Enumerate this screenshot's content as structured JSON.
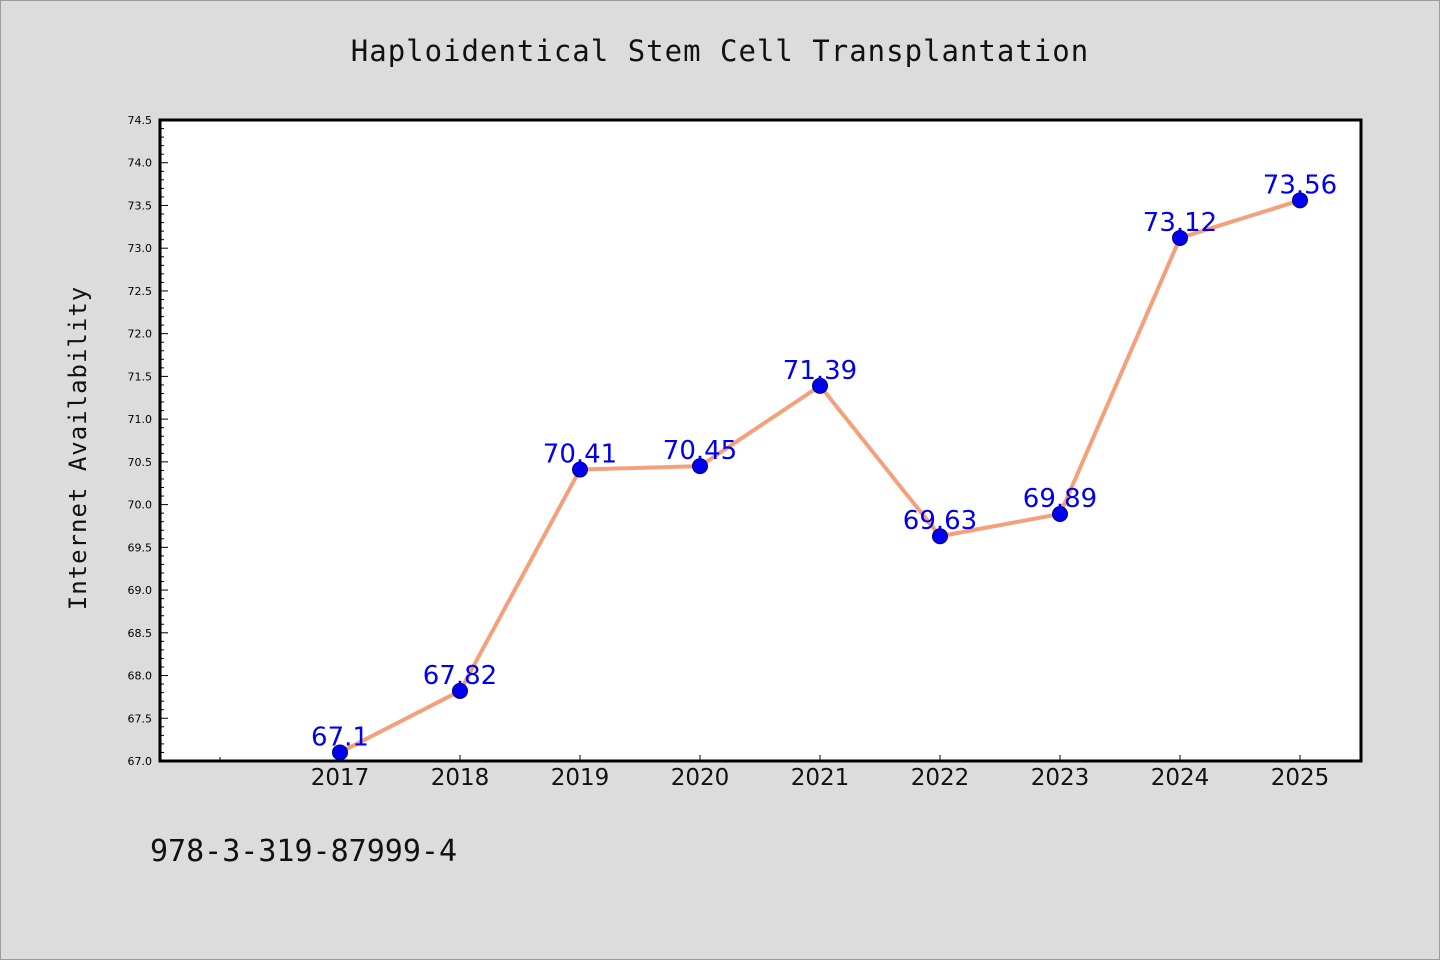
{
  "chart_data": {
    "type": "line",
    "title": "Haploidentical Stem Cell Transplantation",
    "xlabel": "",
    "ylabel": "Internet Availability",
    "categories": [
      "2017",
      "2018",
      "2019",
      "2020",
      "2021",
      "2022",
      "2023",
      "2024",
      "2025"
    ],
    "series": [
      {
        "values": [
          67.1,
          67.82,
          70.41,
          70.45,
          71.39,
          69.63,
          69.89,
          73.12,
          73.56
        ],
        "labels": [
          "67.1",
          "67.82",
          "70.41",
          "70.45",
          "71.39",
          "69.63",
          "69.89",
          "73.12",
          "73.56"
        ]
      }
    ],
    "ylim": [
      67.0,
      74.5
    ],
    "yticks": [
      "67.0",
      "67.5",
      "68.0",
      "68.5",
      "69.0",
      "69.5",
      "70.0",
      "70.5",
      "71.0",
      "71.5",
      "72.0",
      "72.5",
      "73.0",
      "73.5",
      "74.0",
      "74.5"
    ],
    "grid": false,
    "colors": {
      "line": "#f4a07a",
      "marker": "#0000ee",
      "data_label": "#0000ee",
      "background": "#dcdcdc",
      "plot_background": "#ffffff"
    }
  },
  "footer": {
    "code": "978-3-319-87999-4"
  }
}
